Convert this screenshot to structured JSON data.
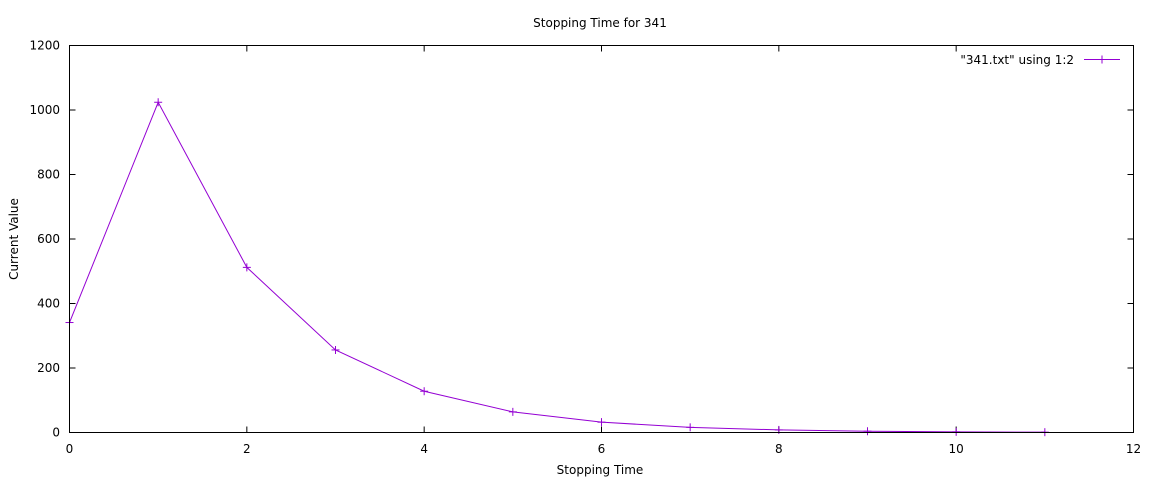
{
  "chart_data": {
    "type": "line",
    "title": "Stopping Time for 341",
    "xlabel": "Stopping Time",
    "ylabel": "Current Value",
    "xlim": [
      0,
      12
    ],
    "ylim": [
      0,
      1200
    ],
    "xticks": [
      0,
      2,
      4,
      6,
      8,
      10,
      12
    ],
    "yticks": [
      0,
      200,
      400,
      600,
      800,
      1000,
      1200
    ],
    "grid": false,
    "legend_position": "top-right",
    "series": [
      {
        "name": "\"341.txt\" using 1:2",
        "color": "#9400d3",
        "marker": "plus",
        "x": [
          0,
          1,
          2,
          3,
          4,
          5,
          6,
          7,
          8,
          9,
          10,
          11
        ],
        "y": [
          341,
          1024,
          512,
          256,
          128,
          64,
          32,
          16,
          8,
          4,
          2,
          1
        ]
      }
    ]
  }
}
